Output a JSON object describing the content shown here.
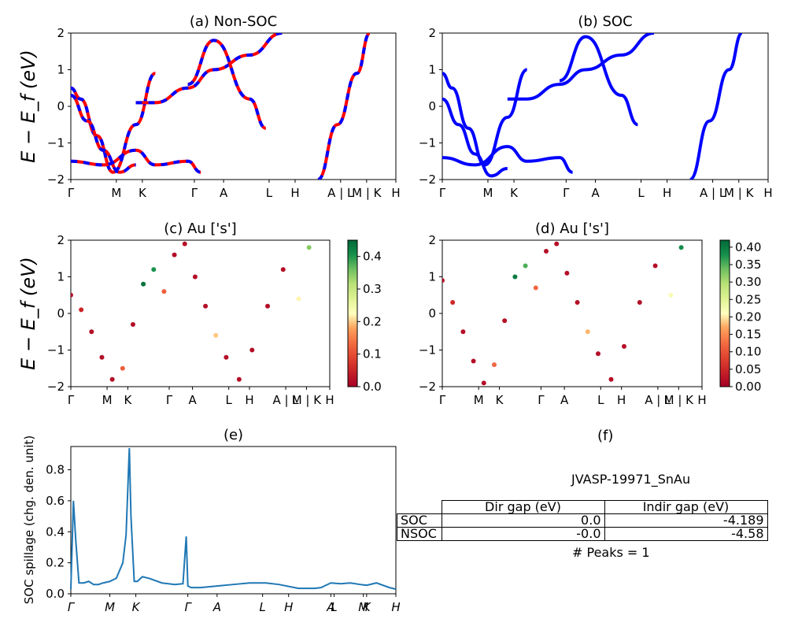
{
  "panels": {
    "a": {
      "title": "(a) Non-SOC",
      "ylabel": "E − E_f (eV)"
    },
    "b": {
      "title": "(b) SOC"
    },
    "c": {
      "title": "(c)  Au ['s']",
      "ylabel": "E − E_f (eV)"
    },
    "d": {
      "title": "(d) Au ['s']"
    },
    "e": {
      "title": "(e)",
      "ylabel": "SOC spillage (chg. den. unit)"
    },
    "f": {
      "title": "(f)",
      "name": "JVASP-19971_SnAu",
      "peaks": "# Peaks = 1"
    }
  },
  "kpath_labels": [
    "Γ",
    "M",
    "K",
    "Γ",
    "A",
    "L",
    "H",
    "A | L",
    "M | K",
    "H"
  ],
  "kpath_labels_e": [
    "Γ",
    "M",
    "K",
    "Γ",
    "A",
    "L",
    "H",
    "A",
    "L",
    "M",
    "K",
    "H"
  ],
  "energy_ticks": [
    "2",
    "1",
    "0",
    "−1",
    "−2"
  ],
  "spillage_ticks": [
    "0.0",
    "0.2",
    "0.4",
    "0.6",
    "0.8"
  ],
  "colorbar_c": {
    "ticks": [
      "0.0",
      "0.1",
      "0.2",
      "0.3",
      "0.4"
    ],
    "max": 0.45
  },
  "colorbar_d": {
    "ticks": [
      "0.00",
      "0.05",
      "0.10",
      "0.15",
      "0.20",
      "0.25",
      "0.30",
      "0.35",
      "0.40"
    ],
    "max": 0.42
  },
  "colors": {
    "nonsoc_line": "#ff0000",
    "soc_line": "#0000ff",
    "spillage_line": "#1f77b4"
  },
  "table": {
    "headers": [
      "",
      "Dir gap (eV)",
      "Indir gap (eV)"
    ],
    "rows": [
      {
        "label": "SOC",
        "dir": "0.0",
        "indir": "-4.189"
      },
      {
        "label": "NSOC",
        "dir": "-0.0",
        "indir": "-4.58"
      }
    ]
  },
  "chart_data": [
    {
      "type": "line",
      "title": "(a) Non-SOC",
      "ylabel": "E − E_f (eV)",
      "ylim": [
        -2,
        2
      ],
      "xlabels": [
        "Γ",
        "M",
        "K",
        "Γ",
        "A",
        "L",
        "H",
        "A | L",
        "M | K",
        "H"
      ],
      "series": [
        {
          "name": "",
          "x": [
            0,
            0.3,
            0.8,
            1.3,
            2.0,
            2.6
          ],
          "y": [
            0.5,
            0.2,
            -0.8,
            -1.8,
            -0.5,
            0.9
          ]
        },
        {
          "name": "",
          "x": [
            0,
            0.5,
            1.0,
            1.5,
            2.0
          ],
          "y": [
            0.3,
            -0.4,
            -1.2,
            -1.8,
            -1.6
          ]
        },
        {
          "name": "",
          "x": [
            0,
            1.0,
            2.0,
            2.6,
            3.6,
            4.0
          ],
          "y": [
            -1.5,
            -1.6,
            -1.2,
            -1.6,
            -1.5,
            -1.8
          ]
        },
        {
          "name": "",
          "x": [
            2.0,
            2.6,
            3.6,
            4.4,
            5.5,
            6.5
          ],
          "y": [
            0.1,
            0.1,
            0.5,
            1.0,
            1.4,
            2.0
          ]
        },
        {
          "name": "",
          "x": [
            3.6,
            4.4,
            5.5,
            6.0
          ],
          "y": [
            0.6,
            1.8,
            0.2,
            -0.6
          ]
        },
        {
          "name": "",
          "x": [
            7.6,
            8.2,
            8.8,
            9.2
          ],
          "y": [
            -2.0,
            -0.5,
            0.9,
            2.0
          ]
        }
      ]
    },
    {
      "type": "line",
      "title": "(b) SOC",
      "ylim": [
        -2,
        2
      ],
      "xlabels": [
        "Γ",
        "M",
        "K",
        "Γ",
        "A",
        "L",
        "H",
        "A | L",
        "M | K",
        "H"
      ],
      "series": [
        {
          "name": "",
          "x": [
            0,
            0.3,
            0.8,
            1.3,
            2.0,
            2.6
          ],
          "y": [
            0.9,
            0.5,
            -0.6,
            -1.6,
            -0.3,
            1.0
          ]
        },
        {
          "name": "",
          "x": [
            0,
            0.5,
            1.0,
            1.5,
            2.0
          ],
          "y": [
            0.2,
            -0.5,
            -1.3,
            -1.9,
            -1.7
          ]
        },
        {
          "name": "",
          "x": [
            0,
            1.0,
            2.0,
            2.6,
            3.6,
            4.0
          ],
          "y": [
            -1.4,
            -1.6,
            -1.1,
            -1.5,
            -1.4,
            -1.8
          ]
        },
        {
          "name": "",
          "x": [
            2.0,
            2.6,
            3.6,
            4.4,
            5.5,
            6.5
          ],
          "y": [
            0.2,
            0.2,
            0.6,
            1.0,
            1.4,
            2.0
          ]
        },
        {
          "name": "",
          "x": [
            3.6,
            4.4,
            5.5,
            6.0
          ],
          "y": [
            0.7,
            1.9,
            0.3,
            -0.5
          ]
        },
        {
          "name": "",
          "x": [
            7.6,
            8.2,
            8.8,
            9.2
          ],
          "y": [
            -2.0,
            -0.4,
            1.0,
            2.0
          ]
        }
      ]
    },
    {
      "type": "scatter",
      "title": "(c)  Au ['s']",
      "ylim": [
        -2,
        2
      ],
      "colorbar_range": [
        0,
        0.45
      ],
      "series": [
        {
          "name": "",
          "x": [
            0,
            0.4,
            0.8,
            1.2,
            1.6,
            2.0,
            2.4,
            2.8,
            3.2,
            3.6,
            4.0,
            4.4,
            4.8,
            5.2,
            5.6,
            6.0,
            6.5,
            7.0,
            7.6,
            8.2,
            8.8,
            9.2
          ],
          "y": [
            0.5,
            0.1,
            -0.5,
            -1.2,
            -1.8,
            -1.5,
            -0.3,
            0.8,
            1.2,
            0.6,
            1.6,
            1.9,
            1.0,
            0.2,
            -0.6,
            -1.2,
            -1.8,
            -1.0,
            0.2,
            1.2,
            0.4,
            1.8
          ],
          "value": [
            0.02,
            0.05,
            0.02,
            0.02,
            0.02,
            0.12,
            0.02,
            0.44,
            0.4,
            0.12,
            0.02,
            0.02,
            0.02,
            0.02,
            0.2,
            0.02,
            0.02,
            0.02,
            0.02,
            0.02,
            0.22,
            0.35
          ]
        }
      ]
    },
    {
      "type": "scatter",
      "title": "(d) Au ['s']",
      "ylim": [
        -2,
        2
      ],
      "colorbar_range": [
        0,
        0.42
      ],
      "series": [
        {
          "name": "",
          "x": [
            0,
            0.4,
            0.8,
            1.2,
            1.6,
            2.0,
            2.4,
            2.8,
            3.2,
            3.6,
            4.0,
            4.4,
            4.8,
            5.2,
            5.6,
            6.0,
            6.5,
            7.0,
            7.6,
            8.2,
            8.8,
            9.2
          ],
          "y": [
            0.9,
            0.3,
            -0.5,
            -1.3,
            -1.9,
            -1.4,
            -0.2,
            1.0,
            1.3,
            0.7,
            1.7,
            1.9,
            1.1,
            0.3,
            -0.5,
            -1.1,
            -1.8,
            -0.9,
            0.3,
            1.3,
            0.5,
            1.8
          ],
          "value": [
            0.02,
            0.05,
            0.02,
            0.02,
            0.02,
            0.12,
            0.02,
            0.4,
            0.35,
            0.12,
            0.02,
            0.02,
            0.02,
            0.02,
            0.18,
            0.02,
            0.02,
            0.02,
            0.02,
            0.02,
            0.22,
            0.38
          ]
        }
      ]
    },
    {
      "type": "line",
      "title": "(e)",
      "ylabel": "SOC spillage (chg. den. unit)",
      "ylim": [
        0,
        0.95
      ],
      "xlabels": [
        "Γ",
        "M",
        "K",
        "Γ",
        "A",
        "L",
        "H",
        "A",
        "L",
        "M",
        "K",
        "H"
      ],
      "series": [
        {
          "name": "",
          "x": [
            0,
            0.08,
            0.15,
            0.25,
            0.4,
            0.55,
            0.7,
            0.85,
            1.0,
            1.2,
            1.4,
            1.6,
            1.7,
            1.8,
            1.85,
            1.95,
            2.05,
            2.2,
            2.4,
            2.8,
            3.2,
            3.45,
            3.55,
            3.6,
            3.7,
            4.0,
            4.5,
            5.0,
            5.5,
            6.0,
            6.4,
            7.0,
            7.5,
            7.7,
            7.8,
            8.0,
            8.3,
            8.6,
            8.9,
            9.1,
            9.4,
            9.8,
            10.0
          ],
          "y": [
            0.03,
            0.6,
            0.35,
            0.07,
            0.07,
            0.08,
            0.06,
            0.06,
            0.07,
            0.08,
            0.1,
            0.2,
            0.38,
            0.94,
            0.5,
            0.08,
            0.08,
            0.11,
            0.1,
            0.07,
            0.06,
            0.065,
            0.37,
            0.05,
            0.04,
            0.04,
            0.05,
            0.06,
            0.07,
            0.07,
            0.06,
            0.035,
            0.035,
            0.04,
            0.05,
            0.07,
            0.065,
            0.07,
            0.06,
            0.055,
            0.07,
            0.04,
            0.03
          ]
        }
      ]
    }
  ]
}
